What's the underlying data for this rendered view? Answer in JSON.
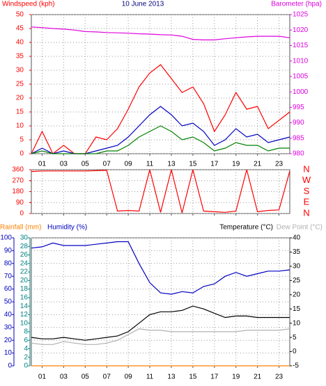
{
  "chart_data": [
    {
      "type": "line",
      "title": "10 June 2013",
      "title_color": "#000080",
      "ylabel": "Windspeed (kph)",
      "ylabel_color": "#ff0000",
      "y2label": "Barometer (hpa)",
      "y2label_color": "#e000e0",
      "xlim": [
        0,
        24
      ],
      "xticks": [
        {
          "value": 1,
          "label": "01"
        },
        {
          "value": 3,
          "label": "03"
        },
        {
          "value": 5,
          "label": "05"
        },
        {
          "value": 7,
          "label": "07"
        },
        {
          "value": 9,
          "label": "09"
        },
        {
          "value": 11,
          "label": "11"
        },
        {
          "value": 13,
          "label": "13"
        },
        {
          "value": 15,
          "label": "15"
        },
        {
          "value": 17,
          "label": "17"
        },
        {
          "value": 19,
          "label": "19"
        },
        {
          "value": 21,
          "label": "21"
        },
        {
          "value": 23,
          "label": "23"
        }
      ],
      "ylim": [
        0,
        50
      ],
      "yticks": [
        0,
        5,
        10,
        15,
        20,
        25,
        30,
        35,
        40,
        45,
        50
      ],
      "ytick_color": "#ff0000",
      "y2lim": [
        980,
        1025
      ],
      "y2ticks": [
        980,
        985,
        990,
        995,
        1000,
        1005,
        1010,
        1015,
        1020,
        1025
      ],
      "y2tick_color": "#e000e0",
      "grid": true,
      "x": [
        0,
        1,
        2,
        3,
        4,
        5,
        6,
        7,
        8,
        9,
        10,
        11,
        12,
        13,
        14,
        15,
        16,
        17,
        18,
        19,
        20,
        21,
        22,
        23,
        24
      ],
      "series": [
        {
          "color": "#e000e0",
          "axis": "y2",
          "values": [
            1021,
            1020.8,
            1020.5,
            1020.3,
            1020,
            1019.5,
            1019.4,
            1019.2,
            1019.1,
            1019,
            1018.8,
            1018.7,
            1018.5,
            1018.4,
            1018,
            1017,
            1016.8,
            1016.8,
            1017.2,
            1017.5,
            1017.8,
            1018,
            1018,
            1018,
            1017.5
          ]
        },
        {
          "color": "#ff0000",
          "values": [
            0,
            8,
            0,
            3,
            0,
            0,
            6,
            5,
            9,
            16,
            24,
            29,
            32,
            27,
            22,
            24,
            18,
            8,
            14,
            22,
            16,
            17,
            9,
            12,
            15
          ]
        },
        {
          "color": "#0000c0",
          "values": [
            0,
            2,
            0,
            1,
            0,
            0,
            1,
            2,
            3,
            6,
            10,
            14,
            17,
            14,
            10,
            11,
            8,
            3,
            5,
            9,
            6,
            7,
            4,
            5,
            6
          ]
        },
        {
          "color": "#008000",
          "values": [
            0,
            1,
            0,
            0,
            0,
            0,
            0,
            1,
            1,
            3,
            6,
            8,
            10,
            8,
            5,
            6,
            4,
            1,
            2,
            4,
            3,
            3,
            1,
            2,
            2
          ]
        }
      ]
    },
    {
      "type": "line",
      "xlim": [
        0,
        24
      ],
      "xticks": [
        1,
        3,
        5,
        7,
        9,
        11,
        13,
        15,
        17,
        19,
        21,
        23
      ],
      "ylim": [
        0,
        360
      ],
      "yticks": [
        0,
        90,
        180,
        270,
        360
      ],
      "ytick_color": "#ff0000",
      "y2lim": [
        0,
        360
      ],
      "y2ticks": [
        {
          "value": 0,
          "label": "N"
        },
        {
          "value": 90,
          "label": "E"
        },
        {
          "value": 180,
          "label": "S"
        },
        {
          "value": 270,
          "label": "W"
        },
        {
          "value": 360,
          "label": "N"
        }
      ],
      "y2tick_color": "#ff0000",
      "grid": true,
      "x": [
        0,
        1,
        2,
        3,
        4,
        5,
        6,
        7,
        8,
        9,
        10,
        11,
        12,
        13,
        14,
        15,
        16,
        17,
        18,
        19,
        20,
        21,
        22,
        23,
        24
      ],
      "series": [
        {
          "color": "#ff0000",
          "values": [
            345,
            350,
            350,
            350,
            350,
            350,
            352,
            355,
            20,
            25,
            20,
            360,
            10,
            360,
            5,
            360,
            20,
            15,
            10,
            20,
            360,
            15,
            25,
            30,
            350
          ]
        }
      ]
    },
    {
      "type": "line",
      "xlim": [
        0,
        24
      ],
      "ylabel": "Humidity (%)",
      "ylabel_color": "#0000c0",
      "y3label": "Rainfall (mm)",
      "y3label_color": "#ff8000",
      "y2label": "Temperature (°C)",
      "y2label_color": "#000000",
      "y4label": "Dew Point (°C)",
      "y4label_color": "#b0b0b0",
      "xticks": [
        {
          "value": 1,
          "label": "01"
        },
        {
          "value": 3,
          "label": "03"
        },
        {
          "value": 5,
          "label": "05"
        },
        {
          "value": 7,
          "label": "07"
        },
        {
          "value": 9,
          "label": "09"
        },
        {
          "value": 11,
          "label": "11"
        },
        {
          "value": 13,
          "label": "13"
        },
        {
          "value": 15,
          "label": "15"
        },
        {
          "value": 17,
          "label": "17"
        },
        {
          "value": 19,
          "label": "19"
        },
        {
          "value": 21,
          "label": "21"
        },
        {
          "value": 23,
          "label": "23"
        }
      ],
      "ylim": [
        0,
        100
      ],
      "yticks": [
        0,
        10,
        20,
        30,
        40,
        50,
        60,
        70,
        80,
        90,
        100
      ],
      "ytick_color": "#0000c0",
      "y3lim": [
        0,
        30
      ],
      "y3ticks": [
        0,
        2,
        4,
        6,
        8,
        10,
        12,
        14,
        16,
        18,
        20,
        22,
        24,
        26,
        28,
        30
      ],
      "y3tick_color": "#008080",
      "y2lim": [
        -5,
        40
      ],
      "y2ticks": [
        -5,
        0,
        5,
        10,
        15,
        20,
        25,
        30,
        35,
        40
      ],
      "y2tick_color": "#000000",
      "grid": true,
      "x": [
        0,
        1,
        2,
        3,
        4,
        5,
        6,
        7,
        8,
        9,
        10,
        11,
        12,
        13,
        14,
        15,
        16,
        17,
        18,
        19,
        20,
        21,
        22,
        23,
        24
      ],
      "series": [
        {
          "color": "#ff8000",
          "axis": "y3",
          "values": [
            0,
            0,
            0,
            0,
            0,
            0,
            0,
            0,
            0,
            0,
            0,
            0,
            0,
            0,
            0,
            0,
            0,
            0,
            0,
            0,
            0,
            0,
            0,
            0,
            0
          ]
        },
        {
          "color": "#b0b0b0",
          "axis": "y2",
          "values": [
            3,
            2.5,
            2.5,
            3.5,
            3,
            2.5,
            2.5,
            3,
            4,
            6,
            8,
            7.5,
            7.5,
            7,
            7,
            7,
            7,
            7,
            7,
            7,
            7.5,
            7.5,
            7.5,
            7.5,
            8
          ]
        },
        {
          "color": "#000000",
          "axis": "y2",
          "values": [
            5,
            4.5,
            4.5,
            5,
            4.5,
            4,
            4.5,
            5,
            5.5,
            7,
            10,
            13,
            14,
            14,
            14.5,
            16,
            15,
            13.5,
            12,
            12.5,
            12.5,
            12,
            12,
            12,
            12
          ]
        },
        {
          "color": "#0000c0",
          "values": [
            92,
            93,
            96,
            94,
            94,
            94,
            95,
            96,
            97,
            97,
            80,
            65,
            57,
            56,
            58,
            57,
            62,
            64,
            70,
            73,
            70,
            72,
            74,
            74,
            75
          ]
        }
      ]
    }
  ]
}
